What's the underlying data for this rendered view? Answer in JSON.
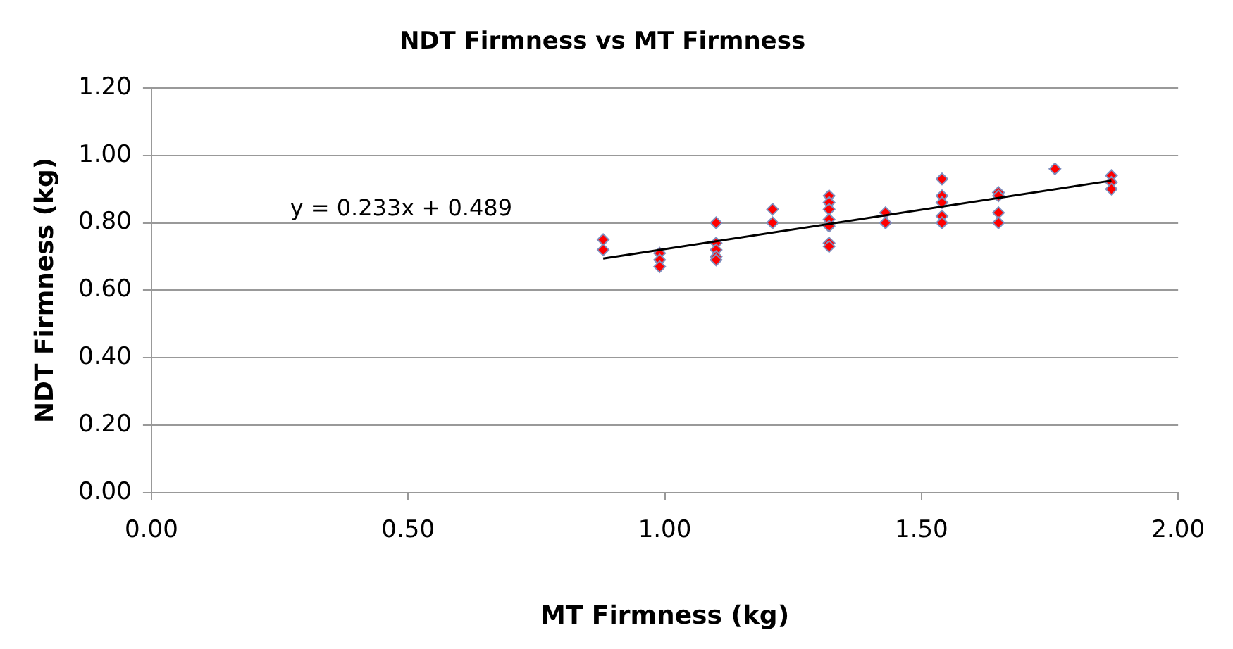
{
  "chart_data": {
    "type": "scatter",
    "title": "NDT Firmness vs MT Firmness",
    "xlabel": "MT Firmness (kg)",
    "ylabel": "NDT Firmness (kg)",
    "xlim": [
      0,
      2
    ],
    "xticks": [
      {
        "value": 0,
        "label": "0.00"
      },
      {
        "value": 0.5,
        "label": "0.50"
      },
      {
        "value": 1,
        "label": "1.00"
      },
      {
        "value": 1.5,
        "label": "1.50"
      },
      {
        "value": 2,
        "label": "2.00"
      }
    ],
    "ylim": [
      0,
      1.2
    ],
    "yticks": [
      {
        "value": 0,
        "label": "0.00"
      },
      {
        "value": 0.2,
        "label": "0.20"
      },
      {
        "value": 0.4,
        "label": "0.40"
      },
      {
        "value": 0.6,
        "label": "0.60"
      },
      {
        "value": 0.8,
        "label": "0.80"
      },
      {
        "value": 1,
        "label": "1.00"
      },
      {
        "value": 1.2,
        "label": "1.20"
      }
    ],
    "grid": "y",
    "legend": false,
    "marker": "diamond",
    "annotations": [
      "y = 0.233x + 0.489"
    ],
    "series": [
      {
        "type": "scatter",
        "color": "#ff0000",
        "x": [
          0.88,
          0.88,
          0.99,
          0.99,
          0.99,
          1.1,
          1.1,
          1.1,
          1.1,
          1.1,
          1.21,
          1.21,
          1.32,
          1.32,
          1.32,
          1.32,
          1.32,
          1.32,
          1.32,
          1.43,
          1.43,
          1.54,
          1.54,
          1.54,
          1.54,
          1.54,
          1.65,
          1.65,
          1.65,
          1.65,
          1.76,
          1.87,
          1.87,
          1.87
        ],
        "values": [
          0.75,
          0.72,
          0.71,
          0.69,
          0.67,
          0.8,
          0.74,
          0.72,
          0.7,
          0.69,
          0.84,
          0.8,
          0.88,
          0.86,
          0.84,
          0.81,
          0.79,
          0.74,
          0.73,
          0.83,
          0.8,
          0.93,
          0.88,
          0.86,
          0.82,
          0.8,
          0.89,
          0.88,
          0.83,
          0.8,
          0.96,
          0.94,
          0.92,
          0.9
        ]
      },
      {
        "type": "line",
        "color": "#000000",
        "marker": "none",
        "x": [
          0.88,
          1.87
        ],
        "values": [
          0.694,
          0.925
        ]
      }
    ]
  }
}
